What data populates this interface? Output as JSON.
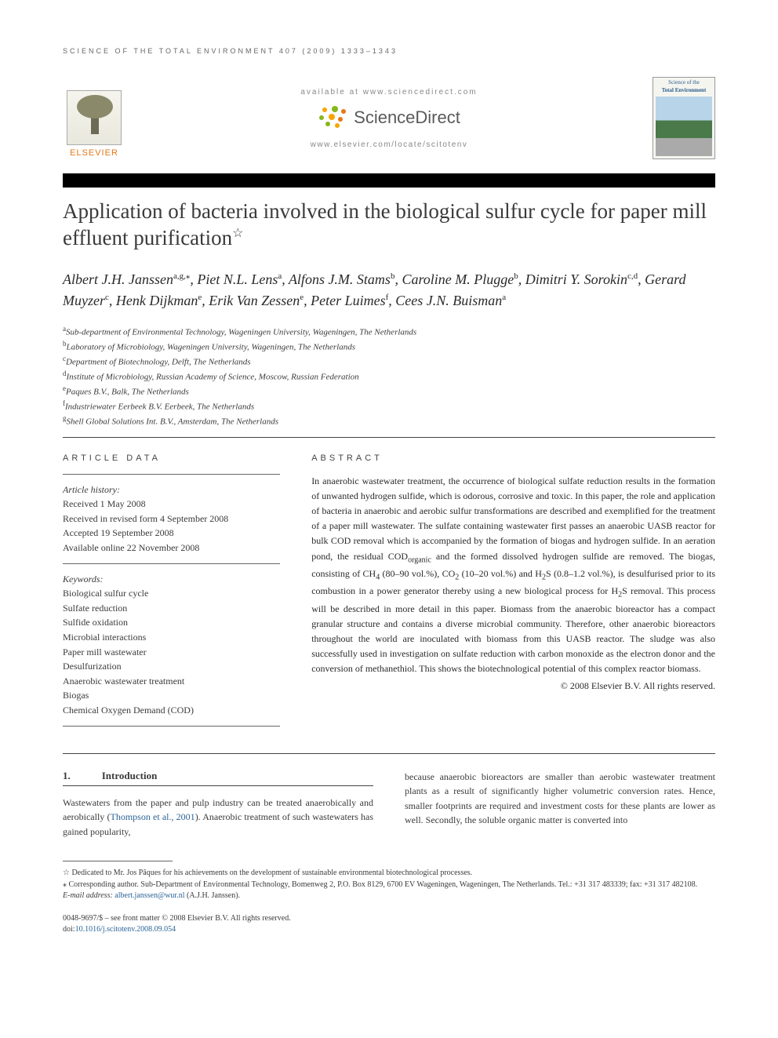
{
  "running_head": "SCIENCE OF THE TOTAL ENVIRONMENT 407 (2009) 1333–1343",
  "header": {
    "elsevier": "ELSEVIER",
    "available_at": "available at www.sciencedirect.com",
    "sd_brand": "ScienceDirect",
    "locate": "www.elsevier.com/locate/scitotenv",
    "journal_title1": "Science of the",
    "journal_title2": "Total Environment"
  },
  "title": "Application of bacteria involved in the biological sulfur cycle for paper mill effluent purification",
  "title_star": "☆",
  "authors_html": "Albert J.H. Janssen|a,g,⁎|, Piet N.L. Lens|a|, Alfons J.M. Stams|b|, Caroline M. Plugge|b|, Dimitri Y. Sorokin|c,d|, Gerard Muyzer|c|, Henk Dijkman|e|, Erik Van Zessen|e|, Peter Luimes|f|, Cees J.N. Buisman|a|",
  "affiliations": [
    "a|Sub-department of Environmental Technology, Wageningen University, Wageningen, The Netherlands",
    "b|Laboratory of Microbiology, Wageningen University, Wageningen, The Netherlands",
    "c|Department of Biotechnology, Delft, The Netherlands",
    "d|Institute of Microbiology, Russian Academy of Science, Moscow, Russian Federation",
    "e|Paques B.V., Balk, The Netherlands",
    "f|Industriewater Eerbeek B.V. Eerbeek, The Netherlands",
    "g|Shell Global Solutions Int. B.V., Amsterdam, The Netherlands"
  ],
  "article_data_head": "ARTICLE DATA",
  "abstract_head": "ABSTRACT",
  "history": {
    "label": "Article history:",
    "received": "Received 1 May 2008",
    "revised": "Received in revised form 4 September 2008",
    "accepted": "Accepted 19 September 2008",
    "online": "Available online 22 November 2008"
  },
  "keywords_label": "Keywords:",
  "keywords": [
    "Biological sulfur cycle",
    "Sulfate reduction",
    "Sulfide oxidation",
    "Microbial interactions",
    "Paper mill wastewater",
    "Desulfurization",
    "Anaerobic wastewater treatment",
    "Biogas",
    "Chemical Oxygen Demand (COD)"
  ],
  "abstract": "In anaerobic wastewater treatment, the occurrence of biological sulfate reduction results in the formation of unwanted hydrogen sulfide, which is odorous, corrosive and toxic. In this paper, the role and application of bacteria in anaerobic and aerobic sulfur transformations are described and exemplified for the treatment of a paper mill wastewater. The sulfate containing wastewater first passes an anaerobic UASB reactor for bulk COD removal which is accompanied by the formation of biogas and hydrogen sulfide. In an aeration pond, the residual CODorganic and the formed dissolved hydrogen sulfide are removed. The biogas, consisting of CH4 (80–90 vol.%), CO2 (10–20 vol.%) and H2S (0.8–1.2 vol.%), is desulfurised prior to its combustion in a power generator thereby using a new biological process for H2S removal. This process will be described in more detail in this paper. Biomass from the anaerobic bioreactor has a compact granular structure and contains a diverse microbial community. Therefore, other anaerobic bioreactors throughout the world are inoculated with biomass from this UASB reactor. The sludge was also successfully used in investigation on sulfate reduction with carbon monoxide as the electron donor and the conversion of methanethiol. This shows the biotechnological potential of this complex reactor biomass.",
  "copyright_line": "© 2008 Elsevier B.V. All rights reserved.",
  "intro": {
    "num": "1.",
    "title": "Introduction",
    "col1": "Wastewaters from the paper and pulp industry can be treated anaerobically and aerobically (Thompson et al., 2001). Anaerobic treatment of such wastewaters has gained popularity,",
    "cite": "Thompson et al., 2001",
    "col2": "because anaerobic bioreactors are smaller than aerobic wastewater treatment plants as a result of significantly higher volumetric conversion rates. Hence, smaller footprints are required and investment costs for these plants are lower as well. Secondly, the soluble organic matter is converted into"
  },
  "footnotes": {
    "dedication": "☆ Dedicated to Mr. Jos Pâques for his achievements on the development of sustainable environmental biotechnological processes.",
    "corr": "⁎ Corresponding author. Sub-Department of Environmental Technology, Bomenweg 2, P.O. Box 8129, 6700 EV Wageningen, Wageningen, The Netherlands. Tel.: +31 317 483339; fax: +31 317 482108.",
    "email_label": "E-mail address:",
    "email": "albert.janssen@wur.nl",
    "email_name": "(A.J.H. Janssen)."
  },
  "footer": {
    "line1": "0048-9697/$ – see front matter © 2008 Elsevier B.V. All rights reserved.",
    "doi_label": "doi:",
    "doi": "10.1016/j.scitotenv.2008.09.054"
  },
  "colors": {
    "orange": "#e67817",
    "green": "#86b817",
    "link": "#2a6496",
    "text": "#3a3a3a"
  }
}
